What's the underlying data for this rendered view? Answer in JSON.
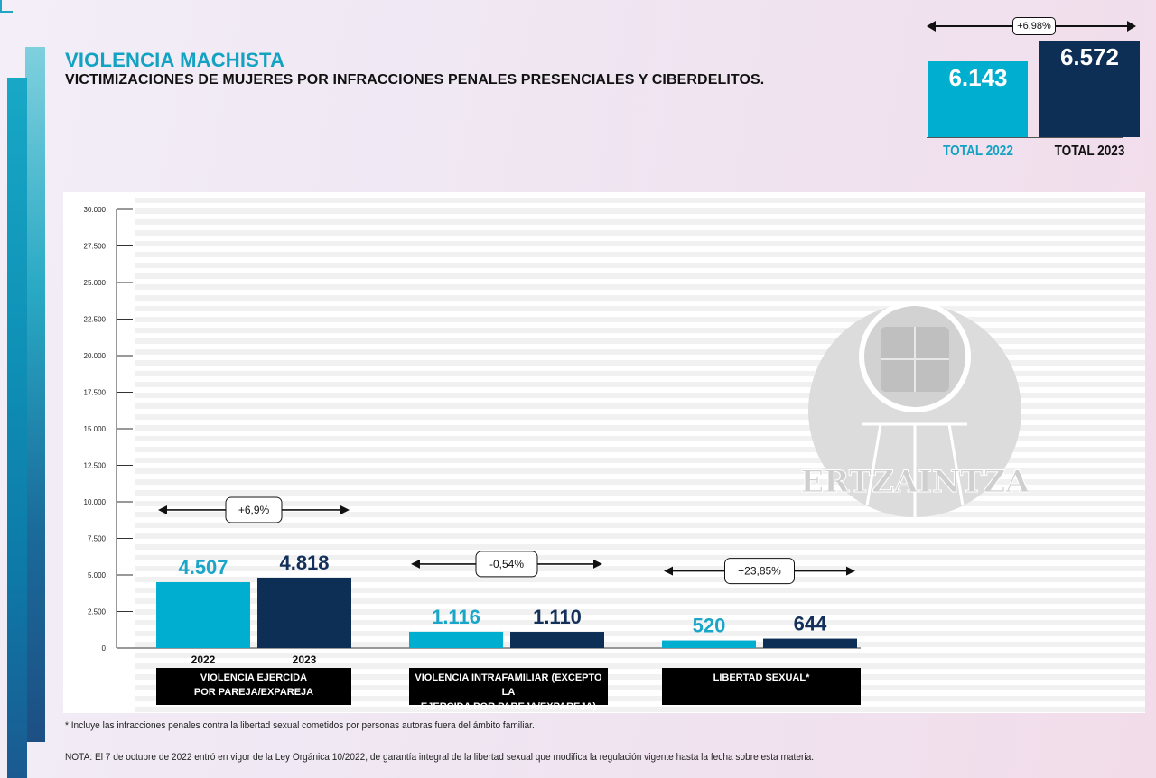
{
  "header": {
    "title": "VIOLENCIA MACHISTA",
    "subtitle": "VICTIMIZACIONES DE MUJERES POR INFRACCIONES PENALES PRESENCIALES Y CIBERDELITOS."
  },
  "totals": {
    "change": "+6,98%",
    "items": [
      {
        "label": "TOTAL 2022",
        "value_text": "6.143",
        "value": 6143,
        "color": "#00aecf"
      },
      {
        "label": "TOTAL 2023",
        "value_text": "6.572",
        "value": 6572,
        "color": "#0d2f55"
      }
    ]
  },
  "chart_data": {
    "type": "bar",
    "ylim": [
      0,
      30000
    ],
    "yticks": [
      "0",
      "2.500",
      "5.000",
      "7.500",
      "10.000",
      "12.500",
      "15.000",
      "17.500",
      "20.000",
      "22.500",
      "25.000",
      "27.500",
      "30.000"
    ],
    "series_labels": [
      "2022",
      "2023"
    ],
    "colors": {
      "2022": "#00aecf",
      "2023": "#0d2f55"
    },
    "groups": [
      {
        "category": "VIOLENCIA EJERCIDA POR PAREJA/EXPAREJA",
        "category_lines": [
          "VIOLENCIA EJERCIDA",
          "POR PAREJA/EXPAREJA"
        ],
        "values": [
          4507,
          4818
        ],
        "value_labels": [
          "4.507",
          "4.818"
        ],
        "change": "+6,9%"
      },
      {
        "category": "VIOLENCIA INTRAFAMILIAR (EXCEPTO LA EJERCIDA POR PAREJA/EXPAREJA)",
        "category_lines": [
          "VIOLENCIA INTRAFAMILIAR (EXCEPTO LA",
          "EJERCIDA POR PAREJA/EXPAREJA)"
        ],
        "values": [
          1116,
          1110
        ],
        "value_labels": [
          "1.116",
          "1.110"
        ],
        "change": "-0,54%"
      },
      {
        "category": "LIBERTAD SEXUAL*",
        "category_lines": [
          "LIBERTAD SEXUAL*"
        ],
        "values": [
          520,
          644
        ],
        "value_labels": [
          "520",
          "644"
        ],
        "change": "+23,85%"
      }
    ],
    "watermark": "ERTZAINTZA"
  },
  "footnotes": {
    "asterisk": "* Incluye las infracciones penales contra la libertad sexual cometidos por personas autoras fuera del ámbito familiar.",
    "note": "NOTA: El 7 de octubre de 2022 entró en vigor de la Ley Orgánica 10/2022, de garantía integral de la libertad sexual que modifica la regulación vigente hasta la fecha sobre esta materia."
  }
}
